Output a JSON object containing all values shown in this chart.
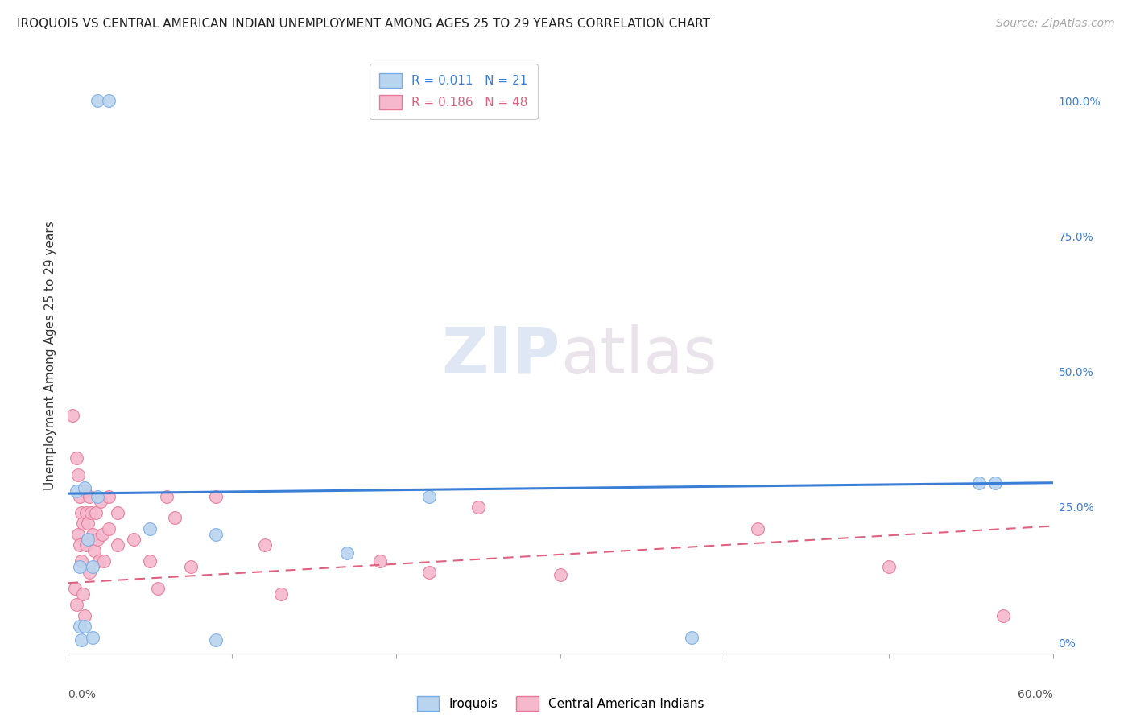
{
  "title": "IROQUOIS VS CENTRAL AMERICAN INDIAN UNEMPLOYMENT AMONG AGES 25 TO 29 YEARS CORRELATION CHART",
  "source": "Source: ZipAtlas.com",
  "ylabel": "Unemployment Among Ages 25 to 29 years",
  "ytick_labels": [
    "100.0%",
    "75.0%",
    "50.0%",
    "25.0%",
    "0%"
  ],
  "ytick_values": [
    1.0,
    0.75,
    0.5,
    0.25,
    0.0
  ],
  "xlim": [
    0.0,
    0.6
  ],
  "ylim": [
    -0.02,
    1.08
  ],
  "iroquois_color": "#b8d4ee",
  "iroquois_edge": "#7aace8",
  "ca_color": "#f5b8cc",
  "ca_edge": "#e87898",
  "blue_line_color": "#3a7fd5",
  "pink_line_color": "#e06080",
  "background_color": "#ffffff",
  "grid_color": "#cccccc",
  "iroquois_x": [
    0.018,
    0.025,
    0.005,
    0.007,
    0.007,
    0.008,
    0.01,
    0.01,
    0.012,
    0.015,
    0.015,
    0.018,
    0.05,
    0.09,
    0.09,
    0.17,
    0.22,
    0.38,
    0.555,
    0.565
  ],
  "iroquois_y": [
    1.0,
    1.0,
    0.28,
    0.14,
    0.03,
    0.005,
    0.285,
    0.03,
    0.19,
    0.14,
    0.01,
    0.27,
    0.21,
    0.2,
    0.005,
    0.165,
    0.27,
    0.01,
    0.295,
    0.295
  ],
  "ca_x": [
    0.003,
    0.004,
    0.005,
    0.005,
    0.006,
    0.006,
    0.007,
    0.007,
    0.008,
    0.008,
    0.009,
    0.009,
    0.01,
    0.01,
    0.011,
    0.011,
    0.012,
    0.013,
    0.013,
    0.014,
    0.015,
    0.016,
    0.017,
    0.018,
    0.019,
    0.02,
    0.021,
    0.022,
    0.025,
    0.025,
    0.03,
    0.03,
    0.04,
    0.05,
    0.055,
    0.06,
    0.065,
    0.075,
    0.09,
    0.12,
    0.13,
    0.19,
    0.22,
    0.25,
    0.3,
    0.42,
    0.5,
    0.57
  ],
  "ca_y": [
    0.42,
    0.1,
    0.34,
    0.07,
    0.31,
    0.2,
    0.27,
    0.18,
    0.24,
    0.15,
    0.22,
    0.09,
    0.28,
    0.05,
    0.24,
    0.18,
    0.22,
    0.27,
    0.13,
    0.24,
    0.2,
    0.17,
    0.24,
    0.19,
    0.15,
    0.26,
    0.2,
    0.15,
    0.27,
    0.21,
    0.24,
    0.18,
    0.19,
    0.15,
    0.1,
    0.27,
    0.23,
    0.14,
    0.27,
    0.18,
    0.09,
    0.15,
    0.13,
    0.25,
    0.125,
    0.21,
    0.14,
    0.05
  ],
  "blue_trend_y0": 0.275,
  "blue_trend_y1": 0.295,
  "pink_trend_y0": 0.11,
  "pink_trend_y1": 0.215,
  "title_fontsize": 11,
  "source_fontsize": 10,
  "axis_label_fontsize": 11,
  "tick_fontsize": 10,
  "legend_fontsize": 11,
  "marker_size": 130
}
